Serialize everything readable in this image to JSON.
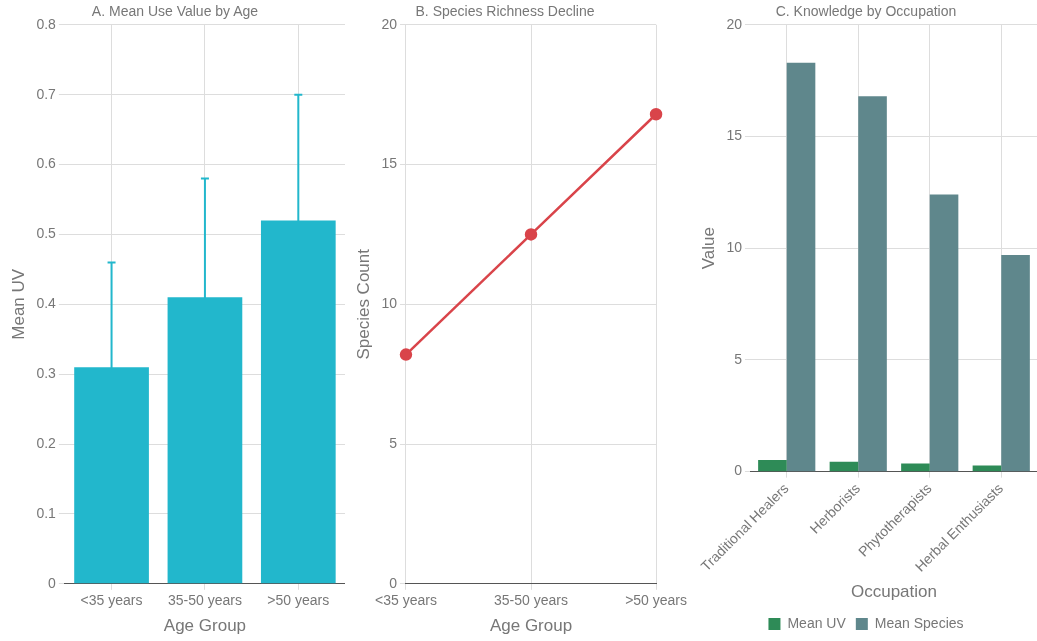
{
  "chart_data": [
    {
      "type": "bar",
      "title": "A. Mean Use Value by Age",
      "xlabel": "Age Group",
      "ylabel": "Mean UV",
      "categories": [
        "<35 years",
        "35-50 years",
        ">50 years"
      ],
      "values": [
        0.31,
        0.41,
        0.52
      ],
      "errors": [
        0.15,
        0.17,
        0.18
      ],
      "color": "#22b7cc",
      "ylim": [
        0,
        0.8
      ],
      "yticks": [
        0,
        0.1,
        0.2,
        0.3,
        0.4,
        0.5,
        0.6,
        0.7,
        0.8
      ],
      "grid": true
    },
    {
      "type": "line",
      "title": "B. Species Richness Decline",
      "xlabel": "Age Group",
      "ylabel": "Species Count",
      "categories": [
        "<35 years",
        "35-50 years",
        ">50 years"
      ],
      "values": [
        8.2,
        12.5,
        16.8
      ],
      "color": "#d9444a",
      "marker": "circle",
      "line_style": "solid",
      "ylim": [
        0,
        20
      ],
      "yticks": [
        0,
        5,
        10,
        15,
        20
      ],
      "grid": true
    },
    {
      "type": "bar",
      "title": "C. Knowledge by Occupation",
      "xlabel": "Occupation",
      "ylabel": "Value",
      "categories": [
        "Traditional Healers",
        "Herborists",
        "Phytotherapists",
        "Herbal Enthusiasts"
      ],
      "series": [
        {
          "name": "Mean UV",
          "color": "#2e8b57",
          "values": [
            0.52,
            0.44,
            0.36,
            0.28
          ]
        },
        {
          "name": "Mean Species",
          "color": "#5f878c",
          "values": [
            18.3,
            16.8,
            12.4,
            9.7
          ]
        }
      ],
      "ylim": [
        0,
        20
      ],
      "yticks": [
        0,
        5,
        10,
        15,
        20
      ],
      "grid": true,
      "legend": "bottom"
    }
  ]
}
